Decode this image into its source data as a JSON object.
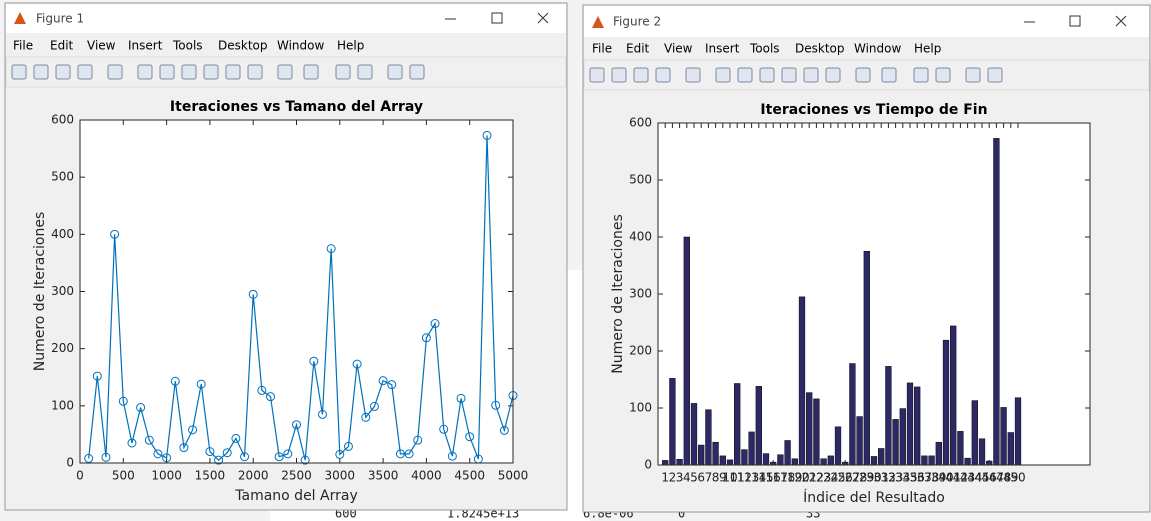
{
  "windows": [
    {
      "title": "Figure 1"
    },
    {
      "title": "Figure 2"
    }
  ],
  "menu": [
    "File",
    "Edit",
    "View",
    "Insert",
    "Tools",
    "Desktop",
    "Window",
    "Help"
  ],
  "background": {
    "bottom_row": [
      "600",
      "1.8245e+13",
      "6.8e-06",
      "0",
      "33"
    ]
  },
  "chart_data": [
    {
      "type": "line",
      "title": "Iteraciones vs Tamano del Array",
      "xlabel": "Tamano del Array",
      "ylabel": "Numero de Iteraciones",
      "x": [
        100,
        200,
        300,
        400,
        500,
        600,
        700,
        800,
        900,
        1000,
        1100,
        1200,
        1300,
        1400,
        1500,
        1600,
        1700,
        1800,
        1900,
        2000,
        2100,
        2200,
        2300,
        2400,
        2500,
        2600,
        2700,
        2800,
        2900,
        3000,
        3100,
        3200,
        3300,
        3400,
        3500,
        3600,
        3700,
        3800,
        3900,
        4000,
        4100,
        4200,
        4300,
        4400,
        4500,
        4600,
        4700,
        4800,
        4900,
        5000
      ],
      "values": [
        8,
        152,
        10,
        400,
        108,
        35,
        97,
        40,
        16,
        9,
        143,
        27,
        58,
        138,
        20,
        5,
        18,
        43,
        11,
        295,
        127,
        116,
        11,
        16,
        67,
        5,
        178,
        85,
        375,
        15,
        29,
        173,
        80,
        99,
        144,
        137,
        16,
        16,
        40,
        219,
        244,
        59,
        12,
        113,
        46,
        7,
        573,
        101,
        57,
        118
      ],
      "color": "#0072bd",
      "marker": "o",
      "xlim": [
        0,
        5000
      ],
      "xticks": [
        0,
        500,
        1000,
        1500,
        2000,
        2500,
        3000,
        3500,
        4000,
        4500,
        5000
      ],
      "ylim": [
        0,
        600
      ],
      "yticks": [
        0,
        100,
        200,
        300,
        400,
        500,
        600
      ]
    },
    {
      "type": "bar",
      "title": "Iteraciones vs Tiempo de Fin",
      "xlabel": "Índice del Resultado",
      "ylabel": "Numero de Iteraciones",
      "x": [
        1,
        2,
        3,
        4,
        5,
        6,
        7,
        8,
        9,
        10,
        11,
        12,
        13,
        14,
        15,
        16,
        17,
        18,
        19,
        20,
        21,
        22,
        23,
        24,
        25,
        26,
        27,
        28,
        29,
        30,
        31,
        32,
        33,
        34,
        35,
        36,
        37,
        38,
        39,
        40,
        41,
        42,
        43,
        44,
        45,
        46,
        47,
        48,
        49,
        50
      ],
      "values": [
        8,
        152,
        10,
        400,
        108,
        35,
        97,
        40,
        16,
        9,
        143,
        27,
        58,
        138,
        20,
        5,
        18,
        43,
        11,
        295,
        127,
        116,
        11,
        16,
        67,
        5,
        178,
        85,
        375,
        15,
        29,
        173,
        80,
        99,
        144,
        137,
        16,
        16,
        40,
        219,
        244,
        59,
        12,
        113,
        46,
        7,
        573,
        101,
        57,
        118
      ],
      "color": "#2d2966",
      "xlim": [
        0,
        60
      ],
      "xticks": [
        1,
        2,
        3,
        4,
        5,
        6,
        7,
        8,
        9,
        10,
        11,
        12,
        13,
        14,
        15,
        16,
        17,
        18,
        19,
        20,
        21,
        22,
        23,
        24,
        25,
        26,
        27,
        28,
        29,
        30,
        31,
        32,
        33,
        34,
        35,
        36,
        37,
        38,
        39,
        40,
        41,
        42,
        43,
        44,
        45,
        46,
        47,
        48,
        49,
        50
      ],
      "ylim": [
        0,
        600
      ],
      "yticks": [
        0,
        100,
        200,
        300,
        400,
        500,
        600
      ]
    }
  ]
}
